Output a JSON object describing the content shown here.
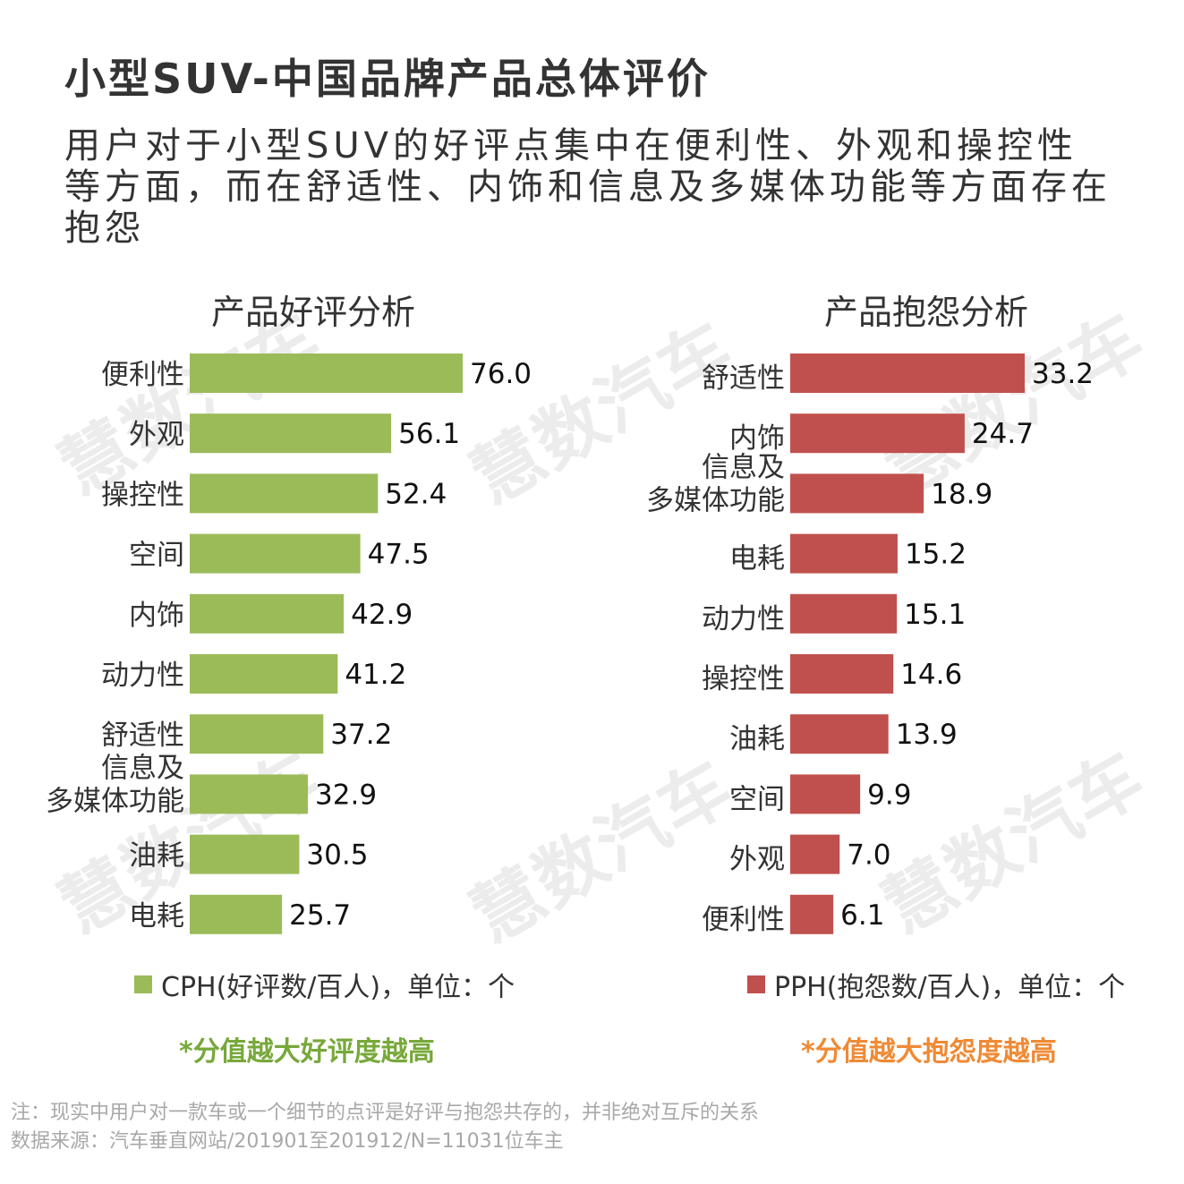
{
  "title": "小型SUV-中国品牌产品总体评价",
  "subtitle": "用户对于小型SUV的好评点集中在便利性、外观和操控性等方面，而在舒适性、内饰和信息及多媒体功能等方面存在抱怨",
  "watermark": "慧数汽车",
  "colors": {
    "positive": "#9bbb59",
    "negative": "#c0504d",
    "note_positive": "#77a83a",
    "note_negative": "#ef8a35"
  },
  "chart_data": [
    {
      "type": "bar",
      "orientation": "horizontal",
      "title": "产品好评分析",
      "categories": [
        "便利性",
        "外观",
        "操控性",
        "空间",
        "内饰",
        "动力性",
        "舒适性",
        "信息及\n多媒体功能",
        "油耗",
        "电耗"
      ],
      "series": [
        {
          "name": "CPH(好评数/百人)，单位：个",
          "values": [
            76.0,
            56.1,
            52.4,
            47.5,
            42.9,
            41.2,
            37.2,
            32.9,
            30.5,
            25.7
          ]
        }
      ],
      "value_labels": [
        "76.0",
        "56.1",
        "52.4",
        "47.5",
        "42.9",
        "41.2",
        "37.2",
        "32.9",
        "30.5",
        "25.7"
      ],
      "xlim": [
        0,
        76.0
      ],
      "legend": "bottom",
      "note": "*分值越大好评度越高"
    },
    {
      "type": "bar",
      "orientation": "horizontal",
      "title": "产品抱怨分析",
      "categories": [
        "舒适性",
        "内饰",
        "信息及\n多媒体功能",
        "电耗",
        "动力性",
        "操控性",
        "油耗",
        "空间",
        "外观",
        "便利性"
      ],
      "series": [
        {
          "name": "PPH(抱怨数/百人)，单位：个",
          "values": [
            33.2,
            24.7,
            18.9,
            15.2,
            15.1,
            14.6,
            13.9,
            9.9,
            7.0,
            6.1
          ]
        }
      ],
      "value_labels": [
        "33.2",
        "24.7",
        "18.9",
        "15.2",
        "15.1",
        "14.6",
        "13.9",
        "9.9",
        "7.0",
        "6.1"
      ],
      "xlim": [
        0,
        33.2
      ],
      "legend": "bottom",
      "note": "*分值越大抱怨度越高"
    }
  ],
  "footer": {
    "note": "注：现实中用户对一款车或一个细节的点评是好评与抱怨共存的，并非绝对互斥的关系",
    "source": "数据来源：汽车垂直网站/201901至201912/N=11031位车主"
  }
}
